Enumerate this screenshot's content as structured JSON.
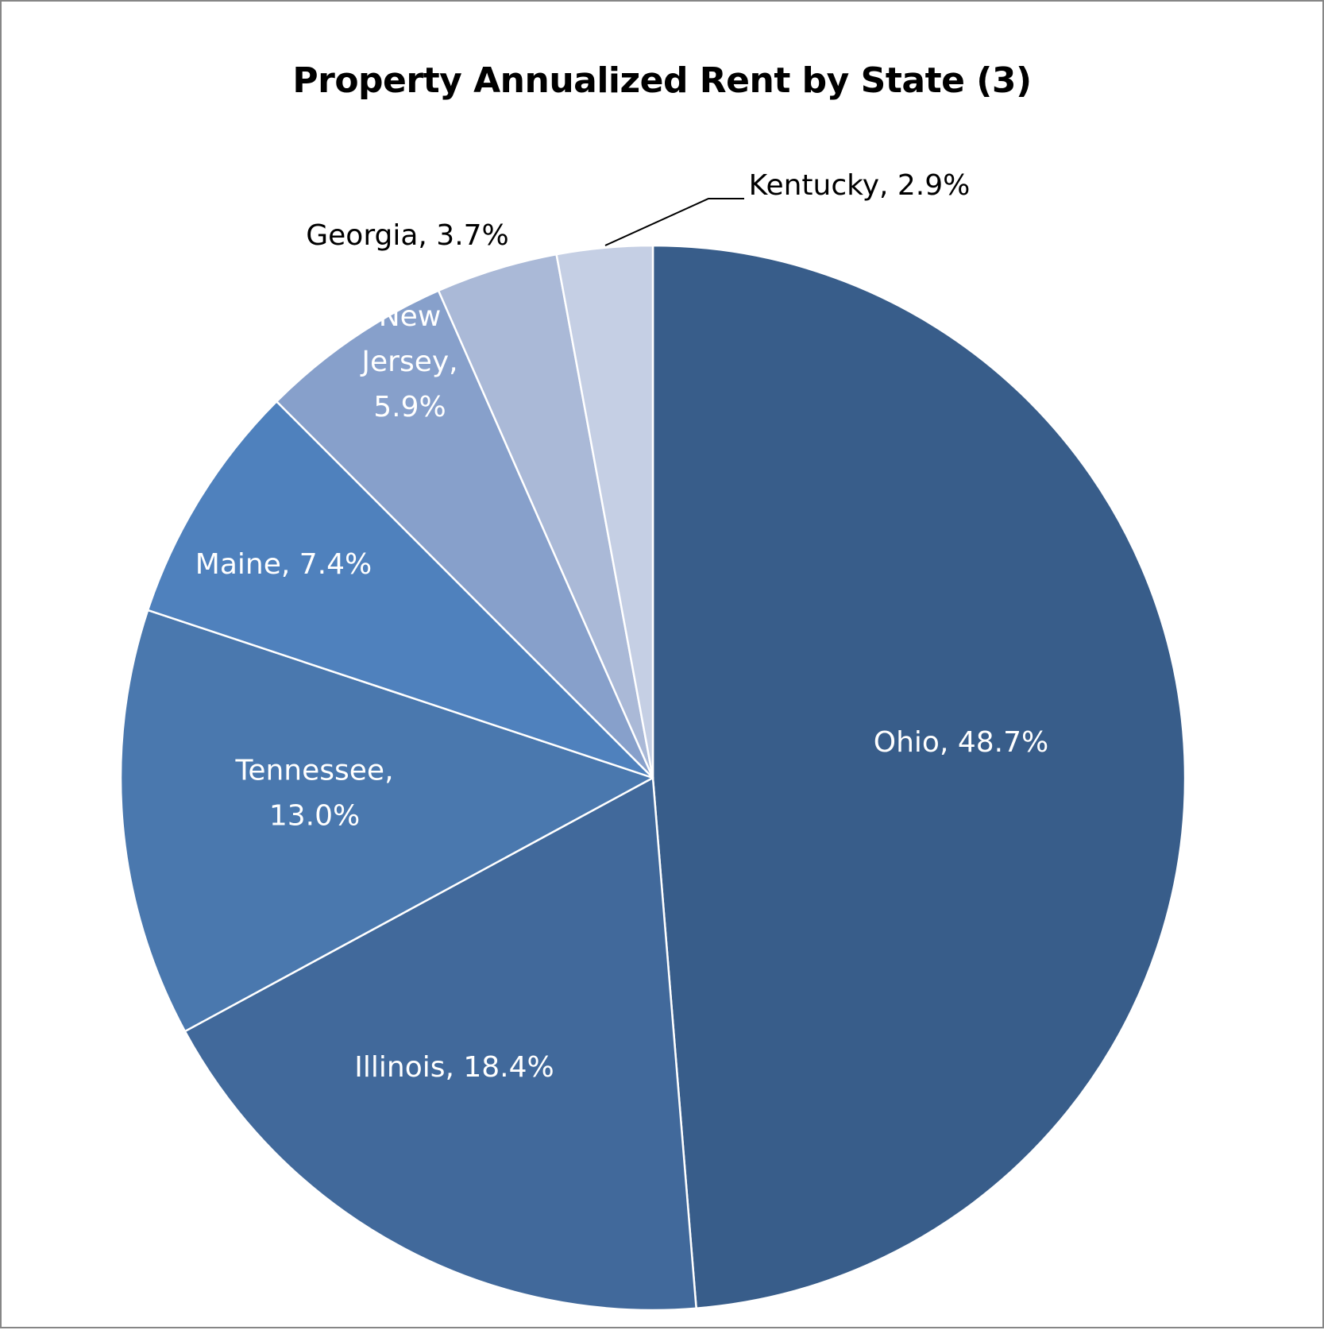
{
  "chart_data": {
    "type": "pie",
    "title": "Property Annualized Rent by State (3)",
    "slices": [
      {
        "name": "Ohio",
        "value": 48.7,
        "label_lines": [
          "Ohio, 48.7%"
        ],
        "color": "#385D8A",
        "label_color": "#FFFFFF"
      },
      {
        "name": "Illinois",
        "value": 18.4,
        "label_lines": [
          "Illinois, 18.4%"
        ],
        "color": "#41699B",
        "label_color": "#FFFFFF"
      },
      {
        "name": "Tennessee",
        "value": 13.0,
        "label_lines": [
          "Tennessee,",
          "13.0%"
        ],
        "color": "#4A78AE",
        "label_color": "#FFFFFF"
      },
      {
        "name": "Maine",
        "value": 7.4,
        "label_lines": [
          "Maine, 7.4%"
        ],
        "color": "#4F81BD",
        "label_color": "#FFFFFF"
      },
      {
        "name": "New Jersey",
        "value": 5.9,
        "label_lines": [
          "New",
          "Jersey,",
          "5.9%"
        ],
        "color": "#87A0CB",
        "label_color": "#FFFFFF"
      },
      {
        "name": "Georgia",
        "value": 3.7,
        "label_lines": [
          "Georgia, 3.7%"
        ],
        "color": "#AAB9D7",
        "label_color": "#000000"
      },
      {
        "name": "Kentucky",
        "value": 2.9,
        "label_lines": [
          "Kentucky, 2.9%"
        ],
        "color": "#C5CFE4",
        "label_color": "#000000"
      }
    ],
    "start": "12 o'clock",
    "direction": "clockwise",
    "legend": "none"
  }
}
